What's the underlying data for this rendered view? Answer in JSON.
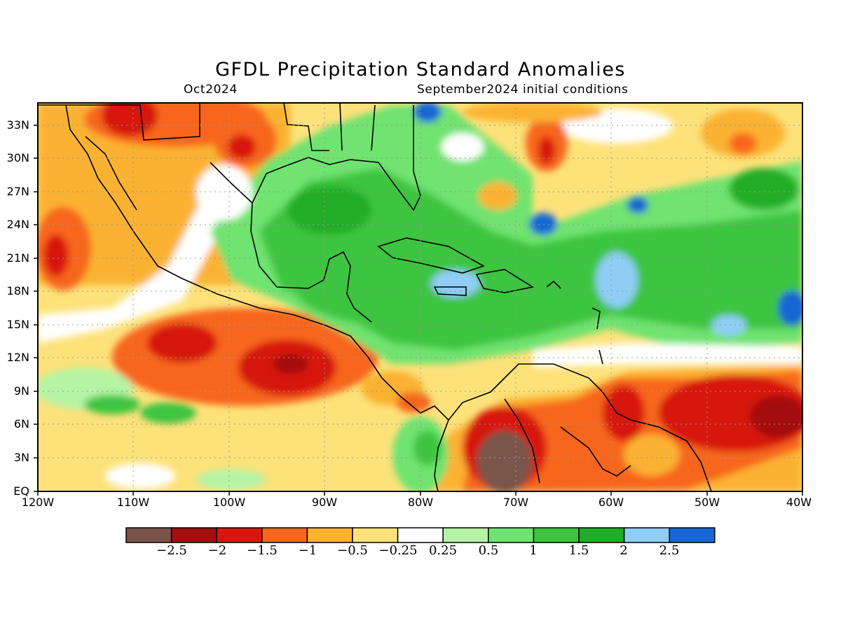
{
  "title": "GFDL Precipitation Standard Anomalies",
  "valid_month": "Oct2024",
  "init_label": "September2024 initial conditions",
  "map": {
    "lon_range": [
      -120,
      -40
    ],
    "lat_range": [
      0,
      35
    ],
    "grid_dotted": true,
    "y_ticks": [
      "EQ",
      "3N",
      "6N",
      "9N",
      "12N",
      "15N",
      "18N",
      "21N",
      "24N",
      "27N",
      "30N",
      "33N"
    ],
    "x_ticks": [
      "120W",
      "110W",
      "100W",
      "90W",
      "80W",
      "70W",
      "60W",
      "50W",
      "40W"
    ]
  },
  "colorbar": {
    "colors": [
      "#7a5448",
      "#a30e0e",
      "#d7170f",
      "#f7661c",
      "#fbb232",
      "#fde27a",
      "#ffffff",
      "#b5f4a5",
      "#6fe36f",
      "#3cc43f",
      "#20ad28",
      "#8fcdf5",
      "#1766d4"
    ],
    "labels": [
      "-2.5",
      "-2",
      "-1.5",
      "-1",
      "-0.5",
      "-0.25",
      "0.25",
      "0.5",
      "1",
      "1.5",
      "2",
      "2.5"
    ]
  }
}
